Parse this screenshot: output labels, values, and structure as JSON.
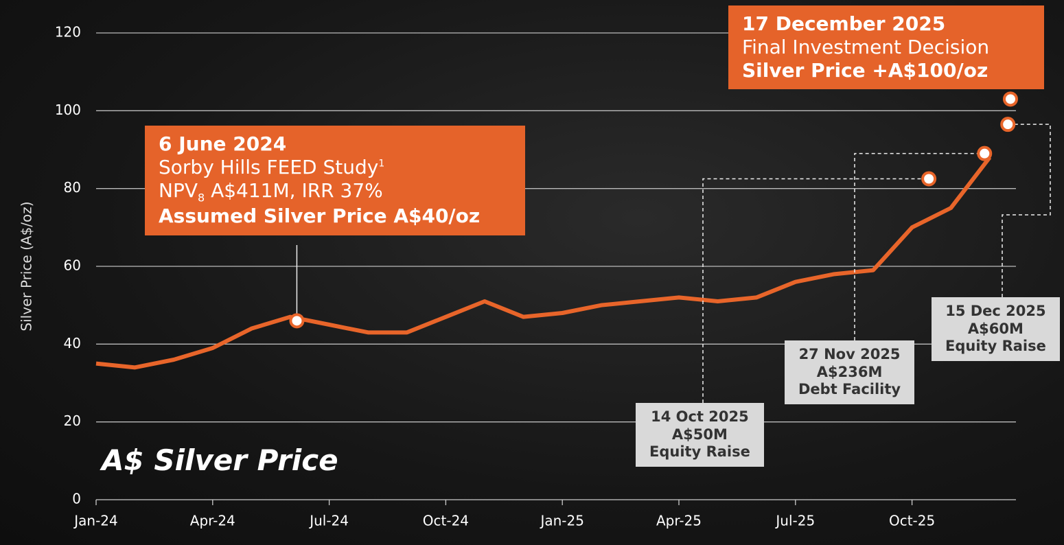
{
  "chart_data": {
    "type": "line",
    "title": "A$ Silver Price",
    "y_label": "Silver Price (A$/oz)",
    "x": [
      "2024-01",
      "2024-02",
      "2024-03",
      "2024-04",
      "2024-05",
      "2024-06",
      "2024-07",
      "2024-08",
      "2024-09",
      "2024-10",
      "2024-11",
      "2024-12",
      "2025-01",
      "2025-02",
      "2025-03",
      "2025-04",
      "2025-05",
      "2025-06",
      "2025-07",
      "2025-08",
      "2025-09",
      "2025-10",
      "2025-11",
      "2025-12"
    ],
    "series": [
      {
        "name": "A$ Silver Price",
        "color": "#e8652a",
        "values": [
          35,
          34,
          36,
          39,
          44,
          47,
          45,
          43,
          43,
          47,
          51,
          47,
          48,
          50,
          51,
          52,
          51,
          52,
          56,
          58,
          59,
          70,
          75,
          88
        ]
      }
    ],
    "xlim": [
      "2024-01",
      "2025-12"
    ],
    "xticks": [
      {
        "value": "2024-01",
        "label": "Jan-24"
      },
      {
        "value": "2024-04",
        "label": "Apr-24"
      },
      {
        "value": "2024-07",
        "label": "Jul-24"
      },
      {
        "value": "2024-10",
        "label": "Oct-24"
      },
      {
        "value": "2025-01",
        "label": "Jan-25"
      },
      {
        "value": "2025-04",
        "label": "Apr-25"
      },
      {
        "value": "2025-07",
        "label": "Jul-25"
      },
      {
        "value": "2025-10",
        "label": "Oct-25"
      }
    ],
    "ylim": [
      0,
      120
    ],
    "yticks": [
      0,
      20,
      40,
      60,
      80,
      100,
      120
    ],
    "grid": true,
    "annotations": [
      {
        "date": "6 June 2024",
        "study": "Sorby Hills FEED Study",
        "note": "1",
        "npv": "NPV",
        "sub": "8",
        "npv_rest": " A$411M, IRR 37%",
        "price": "Assumed Silver Price A$40/oz",
        "value": 46
      },
      {
        "date": "14 Oct 2025",
        "amount": "A$50M",
        "kind": "Equity Raise",
        "value": 82.5
      },
      {
        "date": "27 Nov 2025",
        "amount": "A$236M",
        "kind": "Debt Facility",
        "value": 89
      },
      {
        "date": "15 Dec 2025",
        "amount": "A$60M",
        "kind": "Equity Raise",
        "value": 96.5
      },
      {
        "date": "17 December 2025",
        "event": "Final Investment Decision",
        "price": "Silver Price +A$100/oz",
        "value": 103
      }
    ]
  }
}
